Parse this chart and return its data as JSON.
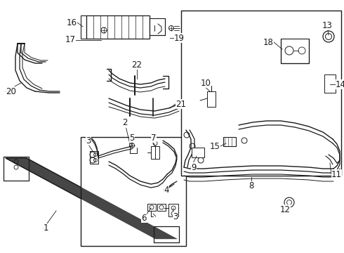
{
  "bg_color": "#ffffff",
  "line_color": "#1a1a1a",
  "fig_width": 4.9,
  "fig_height": 3.6,
  "dpi": 100,
  "font_size": 8.5
}
